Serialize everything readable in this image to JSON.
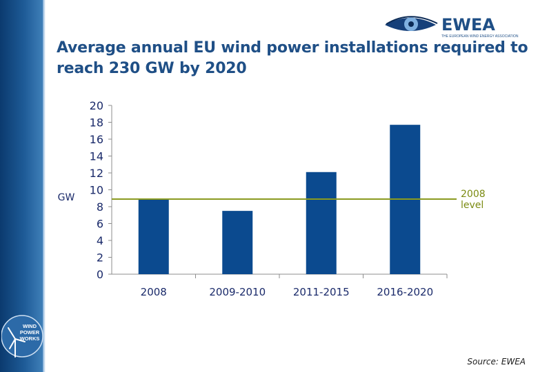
{
  "header": {
    "title_line1": "Average annual EU wind power installations required to",
    "title_line2": "reach 230 GW by 2020",
    "brand_name": "EWEA",
    "brand_tagline": "THE EUROPEAN WIND ENERGY ASSOCIATION"
  },
  "sidebar": {
    "badge_line1": "WIND",
    "badge_line2": "POWER",
    "badge_line3": "WORKS"
  },
  "footer": {
    "source": "Source: EWEA"
  },
  "colors": {
    "bar": "#0b4a8f",
    "reference_line": "#8a9a1f",
    "title": "#1f4f86",
    "sidebar": "#1d5a96"
  },
  "chart_data": {
    "type": "bar",
    "title": "Average annual EU wind power installations required to reach 230 GW by 2020",
    "categories": [
      "2008",
      "2009-2010",
      "2011-2015",
      "2016-2020"
    ],
    "values": [
      8.9,
      7.5,
      12.1,
      17.7
    ],
    "ylabel": "GW",
    "xlabel": "",
    "ylim": [
      0,
      20
    ],
    "yticks": [
      0,
      2,
      4,
      6,
      8,
      10,
      12,
      14,
      16,
      18,
      20
    ],
    "grid": false,
    "reference_line": {
      "value": 8.9,
      "label_line1": "2008",
      "label_line2": "level"
    }
  }
}
